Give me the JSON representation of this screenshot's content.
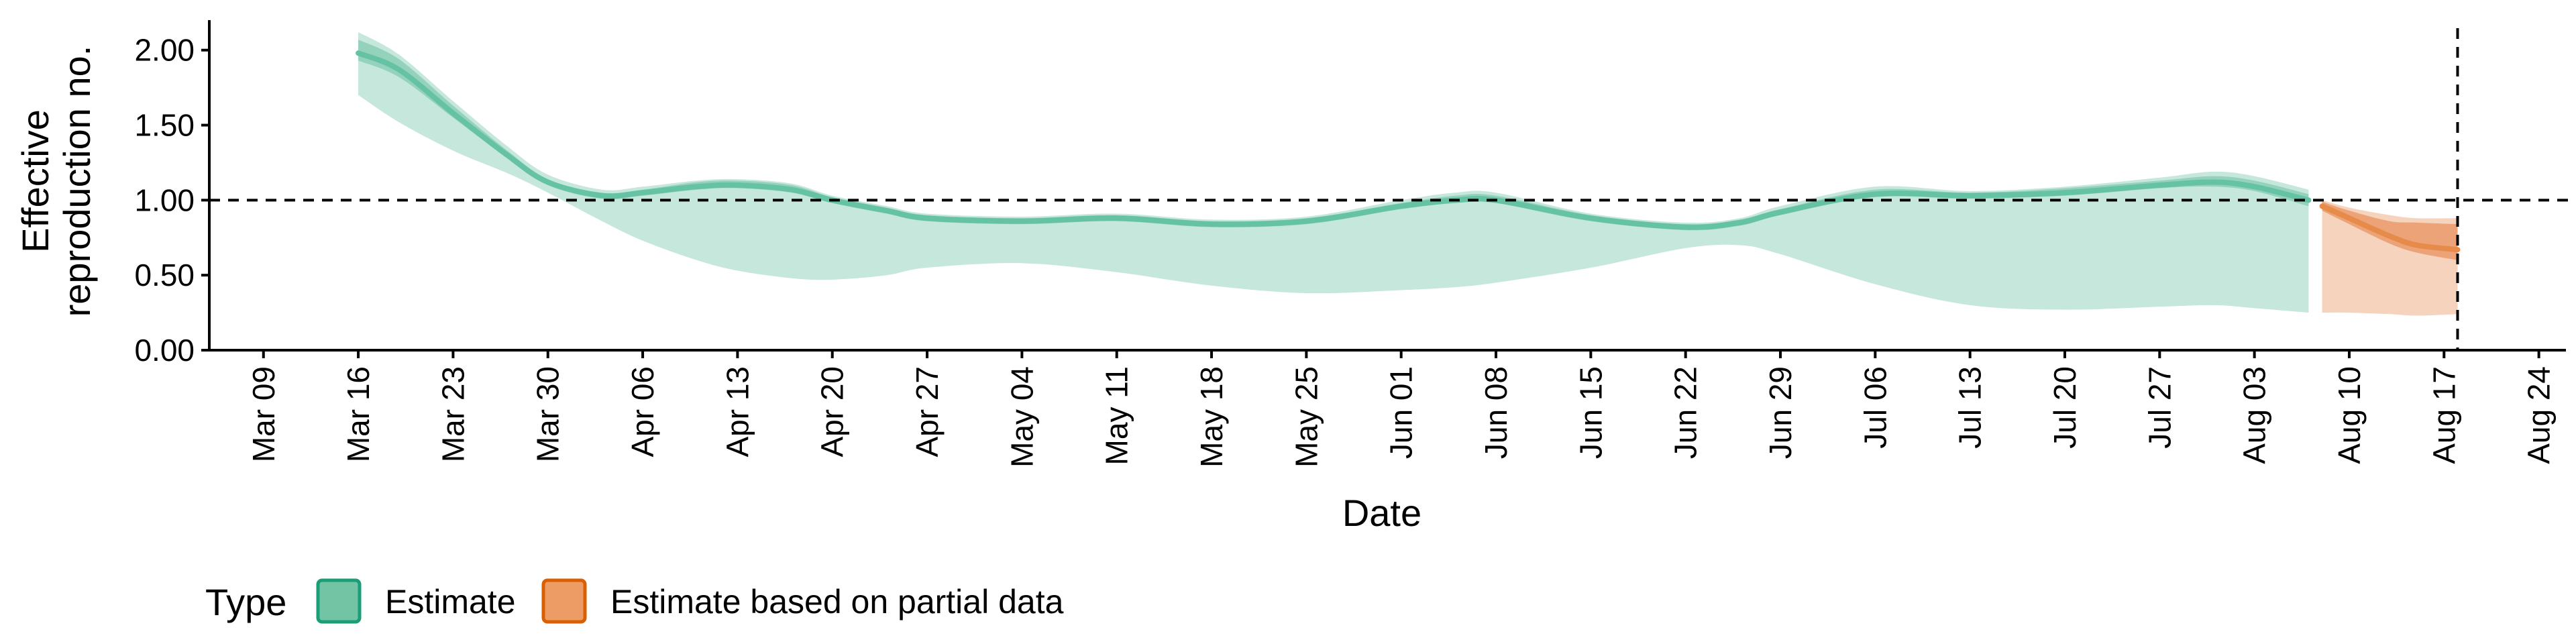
{
  "chart_data": {
    "type": "area",
    "xlabel": "Date",
    "ylabel": "Effective reproduction no.",
    "ylabel_lines": [
      "Effective",
      "reproduction no."
    ],
    "ylim": [
      0,
      2.2
    ],
    "yticks": [
      0,
      0.5,
      1.0,
      1.5,
      2.0
    ],
    "ytick_labels": [
      "0.00",
      "0.50",
      "1.00",
      "1.50",
      "2.00"
    ],
    "x_range": [
      "2020-03-05",
      "2020-08-26"
    ],
    "x_ticks": [
      "2020-03-09",
      "2020-03-16",
      "2020-03-23",
      "2020-03-30",
      "2020-04-06",
      "2020-04-13",
      "2020-04-20",
      "2020-04-27",
      "2020-05-04",
      "2020-05-11",
      "2020-05-18",
      "2020-05-25",
      "2020-06-01",
      "2020-06-08",
      "2020-06-15",
      "2020-06-22",
      "2020-06-29",
      "2020-07-06",
      "2020-07-13",
      "2020-07-20",
      "2020-07-27",
      "2020-08-03",
      "2020-08-10",
      "2020-08-17",
      "2020-08-24"
    ],
    "x_tick_labels": [
      "Mar 09",
      "Mar 16",
      "Mar 23",
      "Mar 30",
      "Apr 06",
      "Apr 13",
      "Apr 20",
      "Apr 27",
      "May 04",
      "May 11",
      "May 18",
      "May 25",
      "Jun 01",
      "Jun 08",
      "Jun 15",
      "Jun 22",
      "Jun 29",
      "Jul 06",
      "Jul 13",
      "Jul 20",
      "Jul 27",
      "Aug 03",
      "Aug 10",
      "Aug 17",
      "Aug 24"
    ],
    "reference_lines": [
      {
        "axis": "y",
        "value": 1.0,
        "style": "dashed"
      },
      {
        "axis": "x",
        "value": "2020-08-18",
        "style": "dashed"
      }
    ],
    "grid": false,
    "legend": {
      "title": "Type",
      "position": "bottom-left"
    },
    "series": [
      {
        "name": "Estimate",
        "color": "#66c2a5",
        "x": [
          "2020-03-16",
          "2020-03-19",
          "2020-03-23",
          "2020-03-27",
          "2020-03-30",
          "2020-04-03",
          "2020-04-06",
          "2020-04-10",
          "2020-04-13",
          "2020-04-17",
          "2020-04-20",
          "2020-04-24",
          "2020-04-27",
          "2020-05-04",
          "2020-05-11",
          "2020-05-18",
          "2020-05-25",
          "2020-06-01",
          "2020-06-05",
          "2020-06-08",
          "2020-06-15",
          "2020-06-22",
          "2020-06-26",
          "2020-06-29",
          "2020-07-06",
          "2020-07-13",
          "2020-07-20",
          "2020-07-27",
          "2020-07-31",
          "2020-08-03",
          "2020-08-07"
        ],
        "median": [
          1.98,
          1.87,
          1.58,
          1.3,
          1.12,
          1.03,
          1.05,
          1.09,
          1.1,
          1.07,
          1.0,
          0.93,
          0.88,
          0.86,
          0.88,
          0.84,
          0.86,
          0.96,
          1.0,
          1.0,
          0.88,
          0.82,
          0.85,
          0.92,
          1.04,
          1.03,
          1.05,
          1.1,
          1.12,
          1.09,
          1.0
        ],
        "inner_lower": [
          1.93,
          1.82,
          1.55,
          1.28,
          1.1,
          1.01,
          1.03,
          1.07,
          1.08,
          1.05,
          0.98,
          0.91,
          0.86,
          0.84,
          0.86,
          0.82,
          0.84,
          0.94,
          0.98,
          0.98,
          0.86,
          0.8,
          0.83,
          0.9,
          1.02,
          1.01,
          1.03,
          1.08,
          1.09,
          1.06,
          0.96
        ],
        "inner_upper": [
          2.07,
          1.94,
          1.63,
          1.33,
          1.14,
          1.05,
          1.07,
          1.12,
          1.13,
          1.1,
          1.02,
          0.95,
          0.9,
          0.88,
          0.9,
          0.86,
          0.88,
          0.98,
          1.03,
          1.03,
          0.9,
          0.84,
          0.87,
          0.94,
          1.07,
          1.05,
          1.08,
          1.13,
          1.16,
          1.13,
          1.04
        ],
        "outer_lower": [
          1.7,
          1.52,
          1.33,
          1.18,
          1.05,
          0.86,
          0.73,
          0.6,
          0.53,
          0.48,
          0.47,
          0.5,
          0.55,
          0.58,
          0.52,
          0.43,
          0.38,
          0.4,
          0.42,
          0.45,
          0.55,
          0.68,
          0.7,
          0.64,
          0.44,
          0.3,
          0.27,
          0.29,
          0.3,
          0.28,
          0.25
        ],
        "outer_upper": [
          2.12,
          1.97,
          1.66,
          1.36,
          1.17,
          1.07,
          1.09,
          1.13,
          1.14,
          1.11,
          1.03,
          0.96,
          0.91,
          0.89,
          0.91,
          0.87,
          0.89,
          1.0,
          1.05,
          1.05,
          0.91,
          0.85,
          0.88,
          0.96,
          1.09,
          1.06,
          1.09,
          1.15,
          1.19,
          1.16,
          1.07
        ]
      },
      {
        "name": "Estimate based on partial data",
        "color": "#e78b4b",
        "x": [
          "2020-08-08",
          "2020-08-10",
          "2020-08-13",
          "2020-08-15",
          "2020-08-18"
        ],
        "median": [
          0.96,
          0.88,
          0.76,
          0.7,
          0.67
        ],
        "inner_lower": [
          0.93,
          0.84,
          0.71,
          0.65,
          0.6
        ],
        "inner_upper": [
          0.99,
          0.93,
          0.86,
          0.85,
          0.84
        ],
        "outer_lower": [
          0.25,
          0.25,
          0.24,
          0.23,
          0.24
        ],
        "outer_upper": [
          1.0,
          0.95,
          0.9,
          0.88,
          0.88
        ]
      }
    ]
  }
}
